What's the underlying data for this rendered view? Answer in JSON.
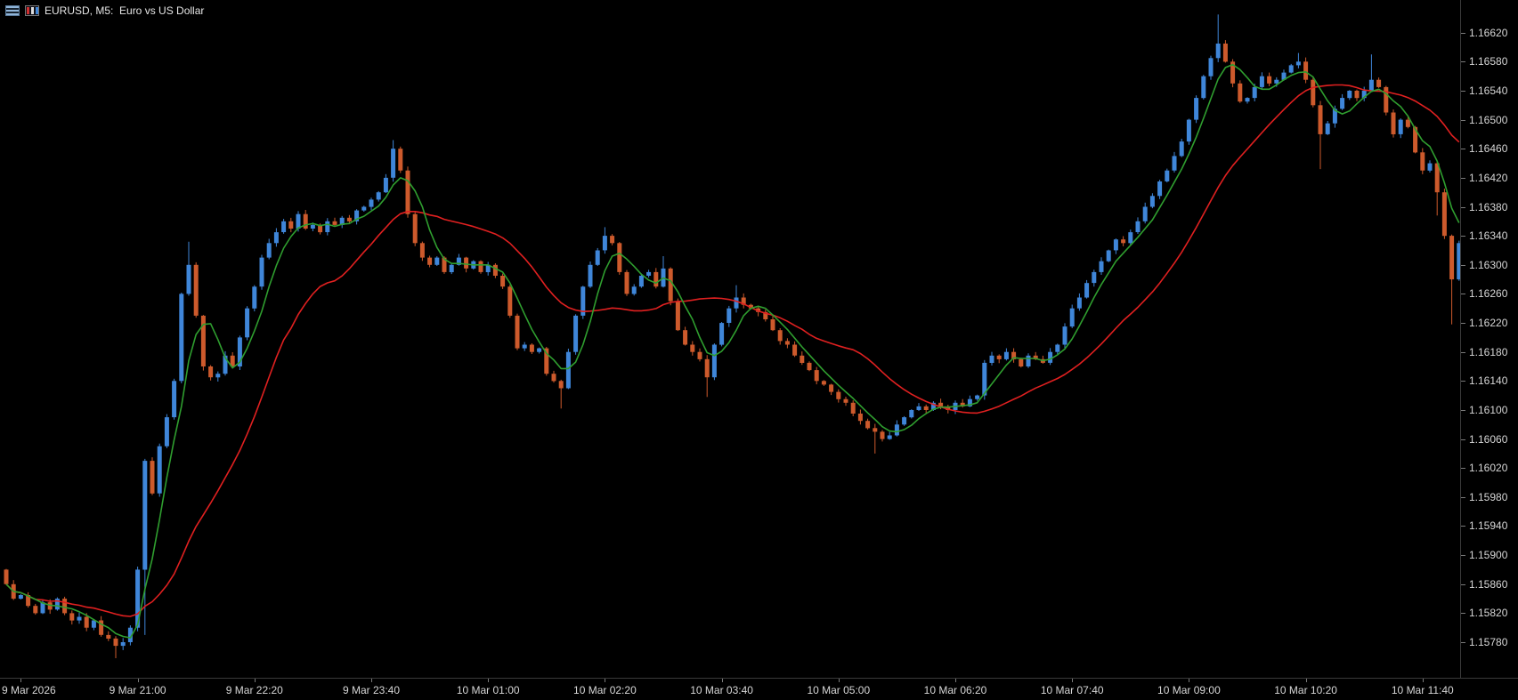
{
  "window": {
    "title": "EURUSD, M5:  Euro vs US Dollar"
  },
  "colors": {
    "background": "#000000",
    "bull": "#3f86d9",
    "bear": "#cd5a2c",
    "ma_fast": "#2f9e2f",
    "ma_slow": "#e02020",
    "axis_text": "#d6d6d6",
    "separator": "#3a3a3a",
    "title_text": "#e6e6e6"
  },
  "chart_data": {
    "type": "candlestick",
    "symbol": "EURUSD",
    "timeframe": "M5",
    "title": "Euro vs US Dollar",
    "grid": "off",
    "legend_position": "none",
    "price_encoding": "price = 1 + points/100000",
    "y_axis_step": 0.0004,
    "y_range_points": [
      15731,
      16665
    ],
    "y_axis_labels": [
      "1.16620",
      "1.16580",
      "1.16540",
      "1.16500",
      "1.16460",
      "1.16420",
      "1.16380",
      "1.16340",
      "1.16300",
      "1.16260",
      "1.16220",
      "1.16180",
      "1.16140",
      "1.16100",
      "1.16060",
      "1.16020",
      "1.15980",
      "1.15940",
      "1.15900",
      "1.15860",
      "1.15820",
      "1.15780"
    ],
    "x_axis_labels": [
      "9 Mar 2026",
      "9 Mar 21:00",
      "9 Mar 22:20",
      "9 Mar 23:40",
      "10 Mar 01:00",
      "10 Mar 02:20",
      "10 Mar 03:40",
      "10 Mar 05:00",
      "10 Mar 06:20",
      "10 Mar 07:40",
      "10 Mar 09:00",
      "10 Mar 10:20",
      "10 Mar 11:40"
    ],
    "x_label_bar_indices": [
      2,
      18,
      34,
      50,
      66,
      82,
      98,
      114,
      130,
      146,
      162,
      178,
      194
    ],
    "bar_interval_minutes": 5,
    "bars_count": 200,
    "first_open_points": 15880,
    "closes_points": [
      15860,
      15840,
      15845,
      15830,
      15820,
      15835,
      15825,
      15840,
      15820,
      15810,
      15815,
      15800,
      15810,
      15790,
      15785,
      15775,
      15780,
      15800,
      15880,
      16030,
      15985,
      16050,
      16090,
      16140,
      16260,
      16300,
      16230,
      16160,
      16145,
      16150,
      16175,
      16160,
      16200,
      16240,
      16270,
      16310,
      16330,
      16345,
      16360,
      16350,
      16370,
      16350,
      16355,
      16345,
      16360,
      16355,
      16365,
      16360,
      16375,
      16380,
      16390,
      16400,
      16420,
      16460,
      16430,
      16370,
      16330,
      16310,
      16300,
      16310,
      16290,
      16300,
      16310,
      16295,
      16305,
      16290,
      16300,
      16285,
      16270,
      16230,
      16185,
      16190,
      16180,
      16185,
      16150,
      16140,
      16130,
      16180,
      16230,
      16270,
      16300,
      16320,
      16340,
      16330,
      16290,
      16260,
      16270,
      16285,
      16290,
      16270,
      16295,
      16250,
      16210,
      16190,
      16180,
      16170,
      16145,
      16190,
      16220,
      16240,
      16255,
      16245,
      16240,
      16235,
      16225,
      16210,
      16195,
      16190,
      16175,
      16165,
      16155,
      16140,
      16135,
      16125,
      16115,
      16110,
      16095,
      16085,
      16075,
      16070,
      16060,
      16065,
      16080,
      16090,
      16100,
      16105,
      16100,
      16110,
      16105,
      16100,
      16110,
      16105,
      16115,
      16120,
      16165,
      16175,
      16170,
      16180,
      16170,
      16160,
      16175,
      16170,
      16165,
      16180,
      16190,
      16215,
      16240,
      16255,
      16275,
      16290,
      16305,
      16320,
      16335,
      16330,
      16345,
      16360,
      16380,
      16395,
      16415,
      16430,
      16450,
      16470,
      16500,
      16530,
      16560,
      16585,
      16605,
      16580,
      16550,
      16525,
      16530,
      16545,
      16560,
      16550,
      16555,
      16565,
      16575,
      16580,
      16555,
      16520,
      16480,
      16495,
      16515,
      16530,
      16540,
      16530,
      16540,
      16555,
      16545,
      16510,
      16480,
      16500,
      16490,
      16455,
      16430,
      16440,
      16400,
      16340,
      16280,
      16330
    ],
    "wick_overrides": {
      "15": {
        "low": 15758
      },
      "19": {
        "low": 15790
      },
      "25": {
        "high": 16332
      },
      "53": {
        "high": 16472
      },
      "76": {
        "low": 16102
      },
      "82": {
        "high": 16352
      },
      "90": {
        "high": 16312
      },
      "96": {
        "low": 16118
      },
      "100": {
        "high": 16272
      },
      "119": {
        "low": 16040
      },
      "166": {
        "high": 16645
      },
      "177": {
        "high": 16592
      },
      "180": {
        "low": 16432
      },
      "187": {
        "high": 16590
      },
      "196": {
        "low": 16368
      },
      "198": {
        "low": 16218
      }
    },
    "overlays": [
      {
        "name": "fast-ma",
        "type": "sma",
        "period": 5,
        "color": "#2f9e2f"
      },
      {
        "name": "slow-ma",
        "type": "sma",
        "period": 20,
        "color": "#e02020"
      }
    ]
  }
}
